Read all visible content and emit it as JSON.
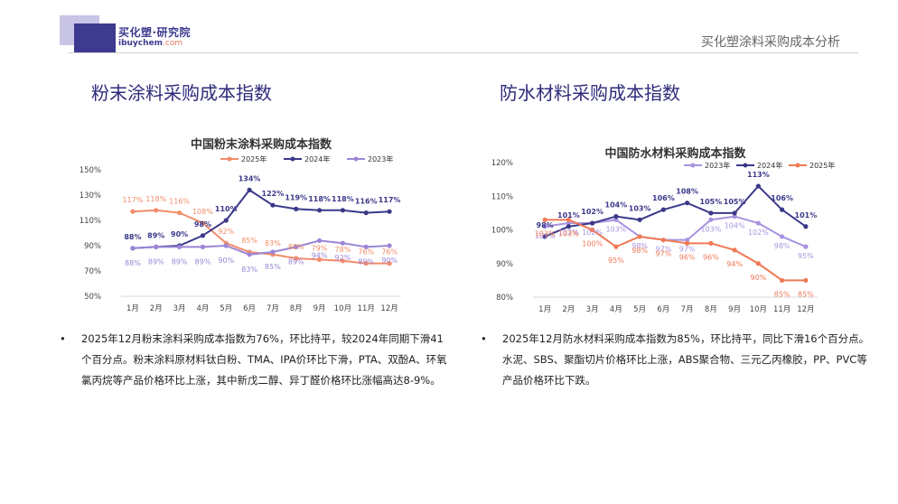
{
  "header": {
    "logo_name": "买化塑·研究院",
    "logo_url_a": "ibuychem",
    "logo_url_b": ".com",
    "report_title": "买化塑涂料采购成本分析"
  },
  "left": {
    "section_title": "粉末涂料采购成本指数",
    "bullet": "2025年12月粉末涂料采购成本指数为76%，环比持平，较2024年同期下滑41个百分点。粉末涂料原材料钛白粉、TMA、IPA价环比下滑，PTA、双酚A、环氧氯丙烷等产品价格环比上涨，其中新戊二醇、异丁醛价格环比涨幅高达8-9%。"
  },
  "right": {
    "section_title": "防水材料采购成本指数",
    "bullet": "2025年12月防水材料采购成本指数为85%，环比持平，同比下滑16个百分点。水泥、SBS、聚酯切片价格环比上涨，ABS聚合物、三元乙丙橡胶，PP、PVC等产品价格环比下跌。"
  },
  "chart_data": [
    {
      "type": "line",
      "title": "中国粉末涂料采购成本指数",
      "categories": [
        "1月",
        "2月",
        "3月",
        "4月",
        "5月",
        "6月",
        "7月",
        "8月",
        "9月",
        "10月",
        "11月",
        "12月"
      ],
      "ylim": [
        50,
        150
      ],
      "yticks": [
        "50%",
        "70%",
        "90%",
        "110%",
        "130%",
        "150%"
      ],
      "ytick_values": [
        50,
        70,
        90,
        110,
        130,
        150
      ],
      "legend_position": "top",
      "series": [
        {
          "name": "2025年",
          "color": "#f28c6a",
          "values": [
            117,
            118,
            116,
            108,
            92,
            85,
            83,
            80,
            79,
            78,
            76,
            76
          ],
          "labels": [
            "117%",
            "118%",
            "116%",
            "108%",
            "92%",
            "85%",
            "83%",
            "80%",
            "79%",
            "78%",
            "76%",
            "76%"
          ]
        },
        {
          "name": "2024年",
          "color": "#3b3889",
          "values": [
            88,
            89,
            90,
            98,
            110,
            134,
            122,
            119,
            118,
            118,
            116,
            117
          ],
          "labels": [
            "88%",
            "89%",
            "90%",
            "98%",
            "110%",
            "134%",
            "122%",
            "119%",
            "118%",
            "118%",
            "116%",
            "117%"
          ]
        },
        {
          "name": "2023年",
          "color": "#9b86d6",
          "values": [
            88,
            89,
            89,
            89,
            90,
            83,
            85,
            89,
            94,
            92,
            89,
            90
          ],
          "labels": [
            "88%",
            "89%",
            "89%",
            "89%",
            "90%",
            "83%",
            "85%",
            "89%",
            "94%",
            "92%",
            "89%",
            "90%"
          ]
        }
      ]
    },
    {
      "type": "line",
      "title": "中国防水材料采购成本指数",
      "categories": [
        "1月",
        "2月",
        "3月",
        "4月",
        "5月",
        "6月",
        "7月",
        "8月",
        "9月",
        "10月",
        "11月",
        "12月"
      ],
      "ylim": [
        80,
        120
      ],
      "yticks": [
        "80%",
        "90%",
        "100%",
        "110%",
        "120%"
      ],
      "ytick_values": [
        80,
        90,
        100,
        110,
        120
      ],
      "legend_position": "top",
      "series": [
        {
          "name": "2023年",
          "color": "#a793df",
          "values": [
            101,
            102,
            102,
            103,
            98,
            97,
            97,
            103,
            104,
            102,
            98,
            95
          ],
          "labels": [
            "101%",
            "102%",
            "102%",
            "103%",
            "98%",
            "97%",
            "97%",
            "103%",
            "104%",
            "102%",
            "98%",
            "95%"
          ]
        },
        {
          "name": "2024年",
          "color": "#3b3889",
          "values": [
            98,
            101,
            102,
            104,
            103,
            106,
            108,
            105,
            105,
            113,
            106,
            101
          ],
          "labels": [
            "98%",
            "101%",
            "102%",
            "104%",
            "103%",
            "106%",
            "108%",
            "105%",
            "105%",
            "113%",
            "106%",
            "101%"
          ]
        },
        {
          "name": "2025年",
          "color": "#f07a56",
          "values": [
            103,
            103,
            100,
            95,
            98,
            97,
            96,
            96,
            94,
            90,
            85,
            85
          ],
          "labels": [
            "103%",
            "103%",
            "100%",
            "95%",
            "98%",
            "97%",
            "96%",
            "96%",
            "94%",
            "90%",
            "85%",
            "85%"
          ]
        }
      ]
    }
  ]
}
